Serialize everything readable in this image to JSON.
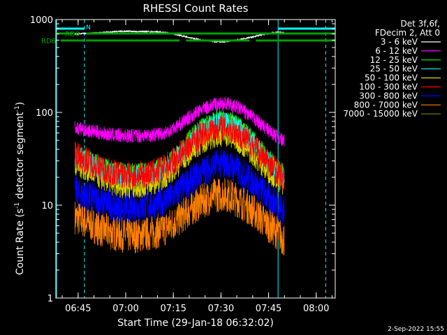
{
  "footer_timestamp": "2-Sep-2022 15:55",
  "chart_data": {
    "type": "line",
    "title": "RHESSI Count Rates",
    "xlabel": "Start Time (29-Jan-18 06:32:02)",
    "ylabel_main": "Count Rate (s",
    "ylabel_sup": "-1",
    "ylabel_mid": " detector segment",
    "ylabel_sup2": "-1",
    "ylabel_end": ")",
    "yscale": "log",
    "ylim": [
      1,
      1000
    ],
    "xlim_minutes": [
      6.0,
      94.0
    ],
    "xticks": [
      {
        "min": 13,
        "label": "06:45"
      },
      {
        "min": 28,
        "label": "07:00"
      },
      {
        "min": 43,
        "label": "07:15"
      },
      {
        "min": 58,
        "label": "07:30"
      },
      {
        "min": 73,
        "label": "07:45"
      },
      {
        "min": 88,
        "label": "08:00"
      }
    ],
    "yticks": [
      {
        "value": 1,
        "label": "1"
      },
      {
        "value": 10,
        "label": "10"
      },
      {
        "value": 100,
        "label": "100"
      },
      {
        "value": 1000,
        "label": "1000"
      }
    ],
    "legend": {
      "position": "top-right",
      "header": [
        "Det 3f,6f,",
        "FDecim 2, Att 0"
      ],
      "entries": [
        {
          "label": "3 - 6 keV",
          "color": "#000000"
        },
        {
          "label": "6 - 12 keV",
          "color": "#ff00ff"
        },
        {
          "label": "12 - 25 keV",
          "color": "#00ff00"
        },
        {
          "label": "25 - 50 keV",
          "color": "#00ffff"
        },
        {
          "label": "50 - 100 keV",
          "color": "#d4d400"
        },
        {
          "label": "100 - 300 keV",
          "color": "#ff0000"
        },
        {
          "label": "300 - 800 keV",
          "color": "#0000ff"
        },
        {
          "label": "800 - 7000 keV",
          "color": "#ff8000"
        },
        {
          "label": "7000 - 15000 keV",
          "color": "#808000"
        }
      ]
    },
    "x_minutes": [
      12.0,
      16.0,
      20.0,
      24.0,
      28.0,
      32.0,
      36.0,
      40.0,
      44.0,
      48.0,
      52.0,
      56.0,
      58.5,
      60.0,
      64.0,
      68.0,
      72.0,
      76.0,
      78.0
    ],
    "series": [
      {
        "name": "3 - 6 keV",
        "color": "#000000",
        "values": [
          700,
          710,
          720,
          740,
          750,
          745,
          740,
          730,
          690,
          640,
          600,
          580,
          575,
          580,
          610,
          650,
          700,
          730,
          720
        ]
      },
      {
        "name": "6 - 12 keV",
        "color": "#ff00ff",
        "values": [
          68,
          64,
          60,
          57,
          56,
          56,
          57,
          60,
          70,
          88,
          108,
          122,
          125,
          123,
          110,
          88,
          68,
          54,
          48
        ]
      },
      {
        "name": "12 - 25 keV",
        "color": "#00ff00",
        "values": [
          38,
          32,
          27,
          24,
          23,
          23,
          24,
          27,
          35,
          52,
          70,
          85,
          88,
          86,
          72,
          52,
          35,
          25,
          22
        ]
      },
      {
        "name": "25 - 50 keV",
        "color": "#00ffff",
        "values": [
          34,
          29,
          25,
          22,
          21,
          21,
          22,
          25,
          32,
          47,
          63,
          77,
          80,
          78,
          65,
          47,
          32,
          23,
          20
        ]
      },
      {
        "name": "50 - 100 keV",
        "color": "#d4d400",
        "values": [
          28,
          24,
          20,
          17,
          16,
          16,
          17,
          20,
          26,
          37,
          48,
          56,
          58,
          57,
          48,
          36,
          25,
          19,
          17
        ]
      },
      {
        "name": "100 - 300 keV",
        "color": "#ff0000",
        "values": [
          35,
          30,
          25,
          22,
          21,
          21,
          22,
          25,
          32,
          45,
          58,
          68,
          70,
          69,
          58,
          44,
          31,
          23,
          19
        ]
      },
      {
        "name": "300 - 800 keV",
        "color": "#0000ff",
        "values": [
          14,
          12.5,
          11,
          10,
          9.5,
          9.5,
          10,
          11,
          13.5,
          18,
          23,
          27,
          28,
          27.5,
          23,
          18,
          13,
          10,
          8.5
        ]
      },
      {
        "name": "800 - 7000 keV",
        "color": "#ff8000",
        "values": [
          7.5,
          6.5,
          5.5,
          5,
          4.7,
          4.7,
          5,
          5.5,
          6.8,
          8.8,
          11,
          12.8,
          13.2,
          13,
          11,
          8.8,
          6.5,
          5,
          4.2
        ]
      }
    ],
    "attenuator_segments": [
      {
        "label": "RD0",
        "color": "#00a000",
        "y_level": "upper",
        "ranges": [
          [
            6.0,
            11.5
          ],
          [
            15.5,
            94.0
          ]
        ]
      },
      {
        "label": "RD6",
        "color": "#00a000",
        "y_level": "lower",
        "ranges": [
          [
            7.5,
            14.9
          ],
          [
            15.5,
            45.0
          ],
          [
            47.0,
            67.0
          ],
          [
            69.0,
            94.0
          ]
        ]
      }
    ],
    "night_bar": {
      "color": "#00ffff",
      "ranges": [
        [
          6.0,
          15.0
        ],
        [
          76.0,
          94.0
        ]
      ]
    },
    "night_label": "N",
    "vertical_lines": [
      {
        "min": 6.2,
        "style": "solid",
        "color": "#00ffff"
      },
      {
        "min": 15.0,
        "style": "dashed",
        "color": "#00ffff"
      },
      {
        "min": 76.0,
        "style": "solid",
        "color": "#00ffff"
      },
      {
        "min": 91.0,
        "style": "dashed",
        "color": "#00ffff"
      }
    ]
  }
}
